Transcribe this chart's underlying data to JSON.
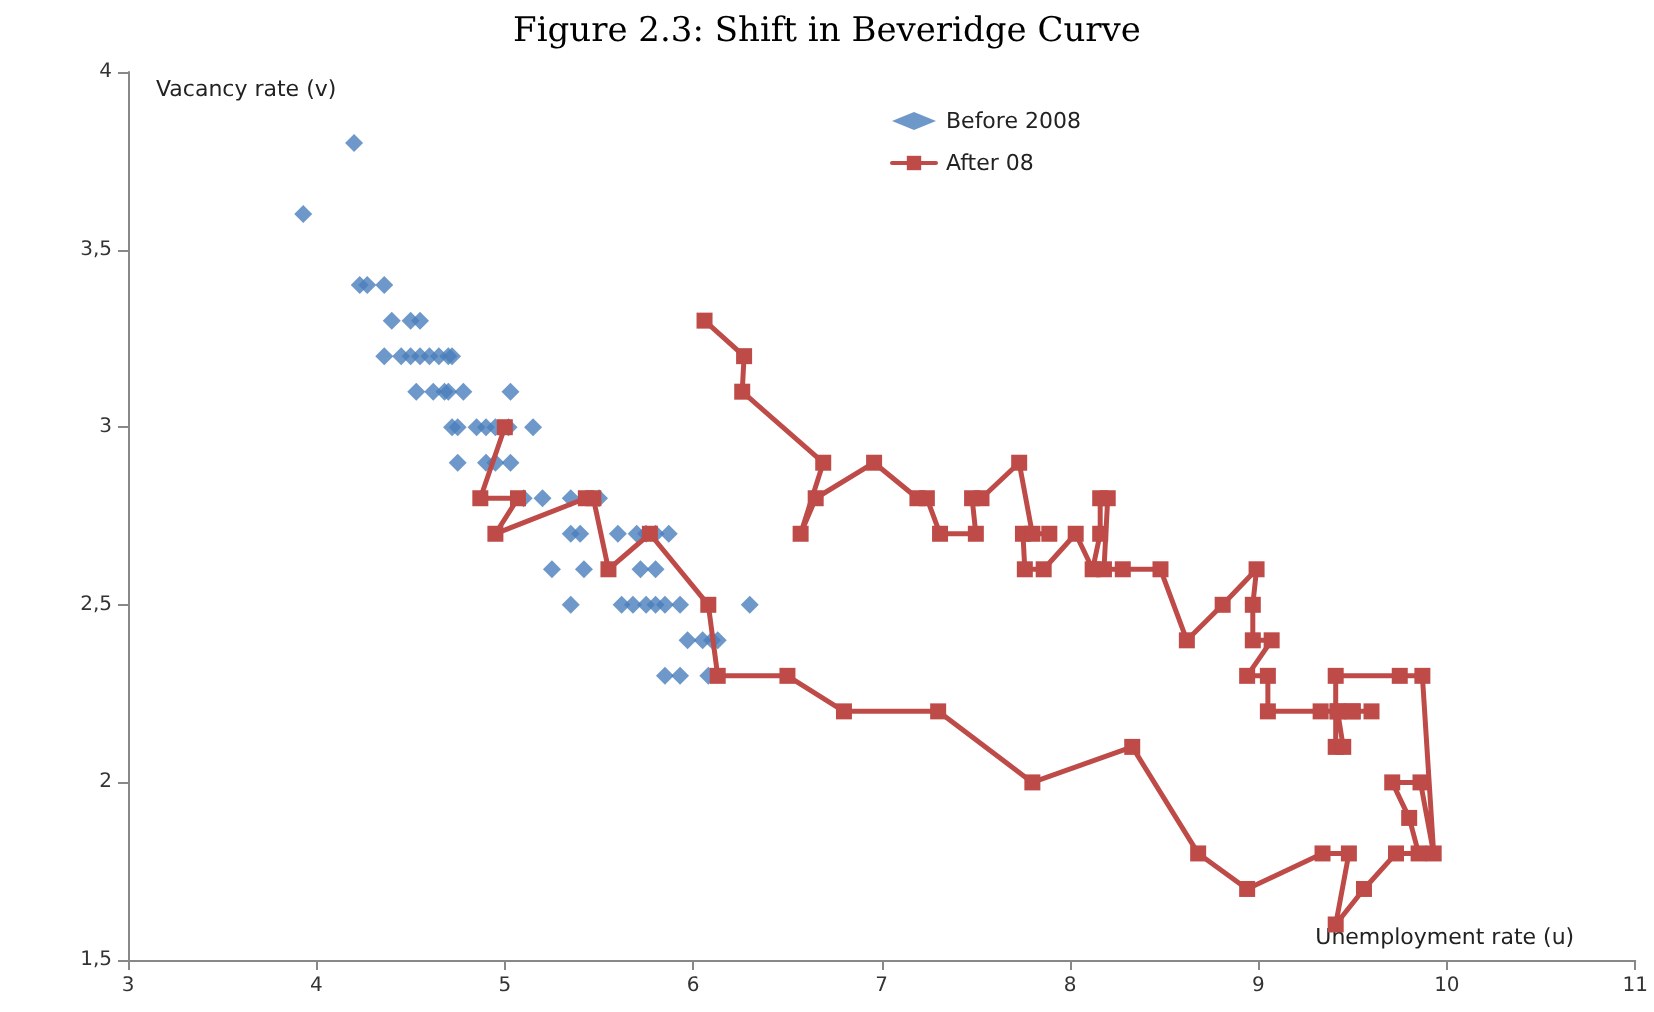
{
  "chart_data": {
    "type": "scatter",
    "title": "Figure 2.3: Shift in Beveridge Curve",
    "xlabel": "Unemployment rate (u)",
    "ylabel": "Vacancy rate (v)",
    "xlim": [
      3,
      11
    ],
    "xticks": [
      3,
      4,
      5,
      6,
      7,
      8,
      9,
      10,
      11
    ],
    "ylim": [
      1.5,
      4
    ],
    "yticks": [
      {
        "value": 1.5,
        "label": "1,5"
      },
      2,
      {
        "value": 2.5,
        "label": "2,5"
      },
      3,
      {
        "value": 3.5,
        "label": "3,5"
      },
      4
    ],
    "grid": false,
    "legend": "top",
    "series": [
      {
        "name": "Before 2008",
        "marker": "diamond",
        "color": "#4a7ebb",
        "x": [
          3.93,
          4.2,
          4.23,
          4.27,
          4.36,
          4.36,
          4.4,
          4.45,
          4.5,
          4.55,
          4.5,
          4.55,
          4.6,
          4.65,
          4.7,
          4.72,
          4.53,
          4.62,
          4.68,
          4.7,
          4.78,
          5.03,
          4.72,
          4.75,
          4.85,
          4.9,
          4.95,
          5.02,
          5.15,
          4.75,
          4.9,
          4.95,
          5.03,
          5.1,
          5.2,
          5.35,
          5.45,
          5.5,
          5.35,
          5.4,
          5.6,
          5.7,
          5.75,
          5.8,
          5.87,
          5.25,
          5.42,
          5.55,
          5.72,
          5.8,
          5.35,
          5.62,
          5.68,
          5.75,
          5.8,
          5.85,
          5.93,
          6.3,
          5.97,
          6.05,
          6.1,
          6.13,
          5.85,
          5.93,
          6.08
        ],
        "values": [
          3.6,
          3.8,
          3.4,
          3.4,
          3.4,
          3.2,
          3.3,
          3.2,
          3.3,
          3.3,
          3.2,
          3.2,
          3.2,
          3.2,
          3.2,
          3.2,
          3.1,
          3.1,
          3.1,
          3.1,
          3.1,
          3.1,
          3.0,
          3.0,
          3.0,
          3.0,
          3.0,
          3.0,
          3.0,
          2.9,
          2.9,
          2.9,
          2.9,
          2.8,
          2.8,
          2.8,
          null,
          2.8,
          2.7,
          2.7,
          2.7,
          2.7,
          2.7,
          2.7,
          2.7,
          2.6,
          2.6,
          null,
          2.6,
          2.6,
          2.5,
          2.5,
          2.5,
          2.5,
          2.5,
          2.5,
          2.5,
          2.5,
          2.4,
          2.4,
          2.4,
          2.4,
          2.3,
          2.3,
          2.3
        ]
      },
      {
        "name": "After 08",
        "type": "line",
        "marker": "square",
        "line_style": "solid",
        "color": "#be4b48",
        "x": [
          5.0,
          4.87,
          5.07,
          4.95,
          5.43,
          5.47,
          5.55,
          5.77,
          6.08,
          6.13,
          6.5,
          6.8,
          7.3,
          7.8,
          8.33,
          8.68,
          8.94,
          9.34,
          9.48,
          9.41,
          9.56,
          9.73,
          9.85,
          9.8,
          9.71,
          9.86,
          9.93,
          9.87,
          9.75,
          9.41,
          9.41,
          9.45,
          9.42,
          9.5,
          9.6,
          9.5,
          9.42,
          9.33,
          9.05,
          9.05,
          8.94,
          9.07,
          8.97,
          8.97,
          8.99,
          8.81,
          8.62,
          8.48,
          8.28,
          8.18,
          8.2,
          8.16,
          8.16,
          8.12,
          8.03,
          7.86,
          7.76,
          7.75,
          7.89,
          7.8,
          7.73,
          7.53,
          7.48,
          7.5,
          7.31,
          7.24,
          7.19,
          6.96,
          6.65,
          6.57,
          6.69,
          6.26,
          6.27,
          6.06
        ],
        "values": [
          3.0,
          2.8,
          2.8,
          2.7,
          2.8,
          2.8,
          2.6,
          2.7,
          2.5,
          2.3,
          2.3,
          2.2,
          2.2,
          2.0,
          2.1,
          1.8,
          1.7,
          1.8,
          1.8,
          1.6,
          1.7,
          1.8,
          1.8,
          1.9,
          2.0,
          2.0,
          1.8,
          2.3,
          2.3,
          2.3,
          2.1,
          2.1,
          2.2,
          2.2,
          2.2,
          2.2,
          2.2,
          2.2,
          2.2,
          2.3,
          2.3,
          2.4,
          2.4,
          2.5,
          2.6,
          2.5,
          2.4,
          2.6,
          2.6,
          2.6,
          2.8,
          2.8,
          2.7,
          2.6,
          2.7,
          2.6,
          2.6,
          2.7,
          2.7,
          2.7,
          2.9,
          2.8,
          2.8,
          2.7,
          2.7,
          2.8,
          2.8,
          2.9,
          2.8,
          2.7,
          2.9,
          3.1,
          3.2,
          3.3
        ]
      }
    ]
  }
}
